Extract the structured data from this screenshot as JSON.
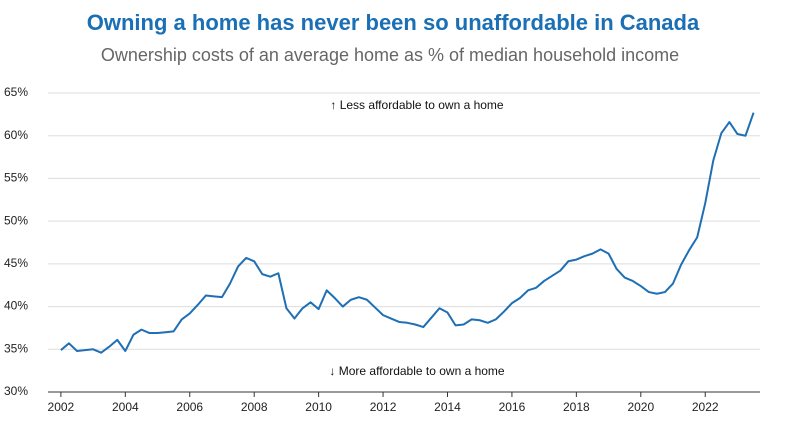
{
  "chart_data": {
    "type": "line",
    "title": "Owning a home has never been so unaffordable in Canada",
    "subtitle": "Ownership costs of an average home as % of median household income",
    "annotations": [
      "↑ Less affordable to own a home",
      "↓ More affordable to own a home"
    ],
    "x": [
      2002,
      2002.25,
      2002.5,
      2002.75,
      2003,
      2003.25,
      2003.5,
      2003.75,
      2004,
      2004.25,
      2004.5,
      2004.75,
      2005,
      2005.25,
      2005.5,
      2005.75,
      2006,
      2006.25,
      2006.5,
      2006.75,
      2007,
      2007.25,
      2007.5,
      2007.75,
      2008,
      2008.25,
      2008.5,
      2008.75,
      2009,
      2009.25,
      2009.5,
      2009.75,
      2010,
      2010.25,
      2010.5,
      2010.75,
      2011,
      2011.25,
      2011.5,
      2011.75,
      2012,
      2012.25,
      2012.5,
      2012.75,
      2013,
      2013.25,
      2013.5,
      2013.75,
      2014,
      2014.25,
      2014.5,
      2014.75,
      2015,
      2015.25,
      2015.5,
      2015.75,
      2016,
      2016.25,
      2016.5,
      2016.75,
      2017,
      2017.25,
      2017.5,
      2017.75,
      2018,
      2018.25,
      2018.5,
      2018.75,
      2019,
      2019.25,
      2019.5,
      2019.75,
      2020,
      2020.25,
      2020.5,
      2020.75,
      2021,
      2021.25,
      2021.5,
      2021.75,
      2022,
      2022.25,
      2022.5,
      2022.75,
      2023,
      2023.25,
      2023.5
    ],
    "series": [
      {
        "color": "#1f6fb4",
        "values": [
          34.9,
          35.7,
          34.8,
          34.9,
          35.0,
          34.6,
          35.3,
          36.1,
          34.8,
          36.7,
          37.3,
          36.9,
          36.9,
          37.0,
          37.1,
          38.5,
          39.2,
          40.2,
          41.3,
          41.2,
          41.1,
          42.7,
          44.7,
          45.7,
          45.3,
          43.8,
          43.5,
          43.9,
          39.8,
          38.6,
          39.8,
          40.5,
          39.7,
          41.9,
          41.0,
          40.0,
          40.8,
          41.1,
          40.8,
          39.9,
          39.0,
          38.6,
          38.2,
          38.1,
          37.9,
          37.6,
          38.7,
          39.8,
          39.3,
          37.8,
          37.9,
          38.5,
          38.4,
          38.1,
          38.5,
          39.4,
          40.4,
          41.0,
          41.9,
          42.2,
          43.0,
          43.6,
          44.2,
          45.3,
          45.5,
          45.9,
          46.2,
          46.7,
          46.2,
          44.4,
          43.4,
          43.0,
          42.4,
          41.7,
          41.5,
          41.7,
          42.7,
          44.9,
          46.6,
          48.1,
          52.1,
          57.1,
          60.3,
          61.6,
          60.2,
          60.0,
          62.7
        ]
      }
    ],
    "xlim": [
      2001.6,
      2023.7
    ],
    "xticks": [
      2002,
      2004,
      2006,
      2008,
      2010,
      2012,
      2014,
      2016,
      2018,
      2020,
      2022
    ],
    "ylim": [
      30,
      65
    ],
    "yticks": [
      {
        "value": 30,
        "label": "30%"
      },
      {
        "value": 35,
        "label": "35%"
      },
      {
        "value": 40,
        "label": "40%"
      },
      {
        "value": 45,
        "label": "45%"
      },
      {
        "value": 50,
        "label": "50%"
      },
      {
        "value": 55,
        "label": "55%"
      },
      {
        "value": 60,
        "label": "60%"
      },
      {
        "value": 65,
        "label": "65%"
      }
    ],
    "grid": true
  }
}
